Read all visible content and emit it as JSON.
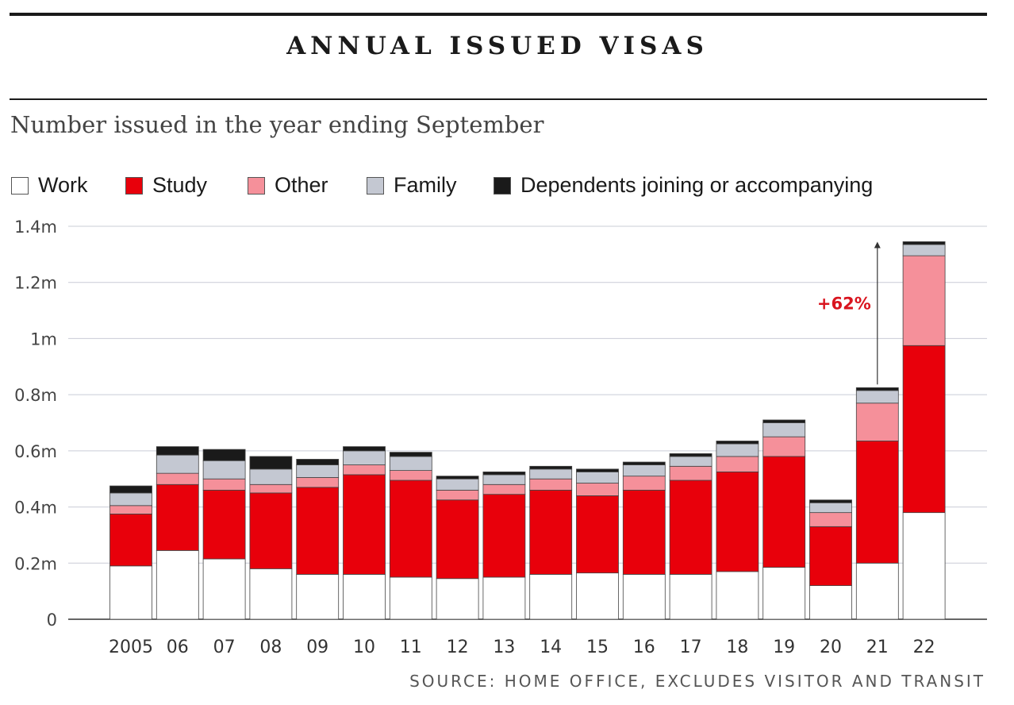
{
  "colors": {
    "work": "#ffffff",
    "study": "#e8000b",
    "other": "#f5909a",
    "family": "#c4c8d2",
    "dependents": "#1a1a1a",
    "annotation": "#d9141e"
  },
  "legend": [
    {
      "key": "work",
      "label": "Work"
    },
    {
      "key": "study",
      "label": "Study"
    },
    {
      "key": "other",
      "label": "Other"
    },
    {
      "key": "family",
      "label": "Family"
    },
    {
      "key": "dependents",
      "label": "Dependents joining or accompanying"
    }
  ],
  "chart_data": {
    "type": "bar",
    "stacked": true,
    "title": "ANNUAL ISSUED VISAS",
    "subtitle": "Number issued in the year ending September",
    "source": "SOURCE: HOME OFFICE, EXCLUDES VISITOR AND TRANSIT",
    "categories": [
      "2005",
      "06",
      "07",
      "08",
      "09",
      "10",
      "11",
      "12",
      "13",
      "14",
      "15",
      "16",
      "17",
      "18",
      "19",
      "20",
      "21",
      "22"
    ],
    "ylim": [
      0,
      1.4
    ],
    "yticks": [
      {
        "value": 0,
        "label": "0"
      },
      {
        "value": 0.2,
        "label": "0.2m"
      },
      {
        "value": 0.4,
        "label": "0.4m"
      },
      {
        "value": 0.6,
        "label": "0.6m"
      },
      {
        "value": 0.8,
        "label": "0.8m"
      },
      {
        "value": 1.0,
        "label": "1m"
      },
      {
        "value": 1.2,
        "label": "1.2m"
      },
      {
        "value": 1.4,
        "label": "1.4m"
      }
    ],
    "unit": "millions",
    "series": [
      {
        "name": "Work",
        "key": "work",
        "values": [
          0.19,
          0.245,
          0.215,
          0.18,
          0.16,
          0.16,
          0.15,
          0.145,
          0.15,
          0.16,
          0.165,
          0.16,
          0.16,
          0.17,
          0.185,
          0.12,
          0.2,
          0.38
        ]
      },
      {
        "name": "Study",
        "key": "study",
        "values": [
          0.185,
          0.235,
          0.245,
          0.27,
          0.31,
          0.355,
          0.345,
          0.28,
          0.295,
          0.3,
          0.275,
          0.3,
          0.335,
          0.355,
          0.395,
          0.21,
          0.435,
          0.595
        ]
      },
      {
        "name": "Other",
        "key": "other",
        "values": [
          0.03,
          0.04,
          0.04,
          0.03,
          0.035,
          0.035,
          0.035,
          0.035,
          0.035,
          0.04,
          0.045,
          0.05,
          0.05,
          0.055,
          0.07,
          0.05,
          0.135,
          0.32
        ]
      },
      {
        "name": "Family",
        "key": "family",
        "values": [
          0.045,
          0.065,
          0.065,
          0.055,
          0.045,
          0.05,
          0.05,
          0.04,
          0.035,
          0.035,
          0.04,
          0.04,
          0.035,
          0.045,
          0.05,
          0.035,
          0.045,
          0.04
        ]
      },
      {
        "name": "Dependents joining or accompanying",
        "key": "dependents",
        "values": [
          0.025,
          0.03,
          0.04,
          0.045,
          0.02,
          0.015,
          0.015,
          0.01,
          0.01,
          0.01,
          0.01,
          0.01,
          0.01,
          0.01,
          0.01,
          0.01,
          0.01,
          0.01
        ]
      }
    ],
    "annotation": {
      "text": "+62%",
      "from_category": "21",
      "to_category": "22"
    }
  }
}
